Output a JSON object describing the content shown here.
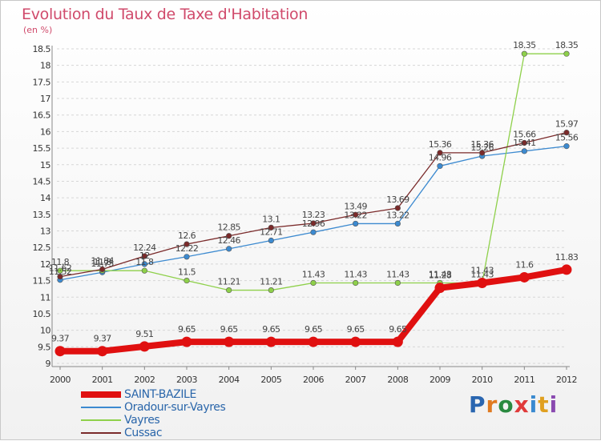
{
  "chart_data": {
    "type": "line",
    "title": "Evolution du Taux de Taxe d'Habitation",
    "subtitle": "(en %)",
    "categories": [
      "2000",
      "2001",
      "2002",
      "2003",
      "2004",
      "2005",
      "2006",
      "2007",
      "2008",
      "2009",
      "2010",
      "2011",
      "2012"
    ],
    "ylim": [
      9,
      18.5
    ],
    "yticks": [
      "9",
      "9.5",
      "10",
      "10.5",
      "11",
      "11.5",
      "12",
      "12.5",
      "13",
      "13.5",
      "14",
      "14.5",
      "15",
      "15.5",
      "16",
      "16.5",
      "17",
      "17.5",
      "18",
      "18.5"
    ],
    "grid": "horizontal dashed",
    "legend_position": "bottom-left",
    "series": [
      {
        "name": "SAINT-BAZILE",
        "color": "#e01010",
        "values": [
          9.37,
          9.37,
          9.51,
          9.65,
          9.65,
          9.65,
          9.65,
          9.65,
          9.65,
          11.28,
          11.43,
          11.6,
          11.83
        ],
        "labels": [
          "9.37",
          "9.37",
          "9.51",
          "9.65",
          "9.65",
          "9.65",
          "9.65",
          "9.65",
          "9.65",
          "11.28",
          "11.43",
          "11.6",
          "11.83"
        ]
      },
      {
        "name": "Oradour-sur-Vayres",
        "color": "#3c8ad0",
        "values": [
          11.52,
          11.75,
          12.0,
          12.22,
          12.46,
          12.71,
          12.96,
          13.22,
          13.22,
          14.96,
          15.26,
          15.41,
          15.56
        ],
        "labels": [
          "11.52",
          "11.75",
          "12",
          "12.22",
          "12.46",
          "12.71",
          "12.96",
          "13.22",
          "13.22",
          "14.96",
          "15.26",
          "15.41",
          "15.56"
        ]
      },
      {
        "name": "Vayres",
        "color": "#8ed04a",
        "values": [
          11.8,
          11.8,
          11.8,
          11.5,
          11.21,
          11.21,
          11.43,
          11.43,
          11.43,
          11.43,
          11.43,
          18.35,
          18.35
        ],
        "labels": [
          "11.8",
          "11.8",
          "11.8",
          "11.5",
          "11.21",
          "11.21",
          "11.43",
          "11.43",
          "11.43",
          "11.43",
          "11.43",
          "18.35",
          "18.35"
        ]
      },
      {
        "name": "Cussac",
        "color": "#7a2a2a",
        "values": [
          11.62,
          11.84,
          12.24,
          12.6,
          12.85,
          13.1,
          13.23,
          13.49,
          13.69,
          15.36,
          15.36,
          15.66,
          15.97
        ],
        "labels": [
          "11.62",
          "11.84",
          "12.24",
          "12.6",
          "12.85",
          "13.1",
          "13.23",
          "13.49",
          "13.69",
          "15.36",
          "15.36",
          "15.66",
          "15.97"
        ]
      }
    ]
  },
  "logo": {
    "letters": [
      "P",
      "r",
      "o",
      "x",
      "i",
      "t",
      "i"
    ],
    "colors": [
      "#2a66b0",
      "#e07a20",
      "#2a8a40",
      "#e03a3a",
      "#3a8ad0",
      "#e0a020",
      "#8a4ab0"
    ]
  }
}
